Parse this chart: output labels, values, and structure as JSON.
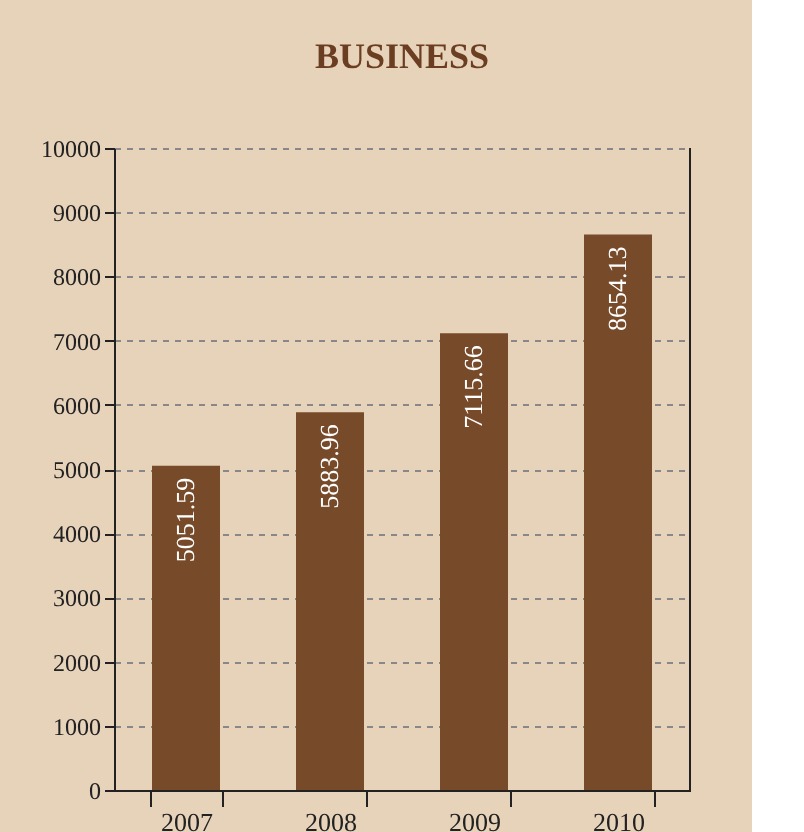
{
  "chart_data": {
    "type": "bar",
    "title": "BUSINESS",
    "categories": [
      "2007",
      "2008",
      "2009",
      "2010"
    ],
    "values": [
      5051.59,
      5883.96,
      7115.66,
      8654.13
    ],
    "color": "#774a2a",
    "ylim": [
      0,
      10000
    ],
    "yticks": [
      0,
      1000,
      2000,
      3000,
      4000,
      5000,
      6000,
      7000,
      8000,
      9000,
      10000
    ],
    "grid": "y",
    "data_labels": true
  }
}
